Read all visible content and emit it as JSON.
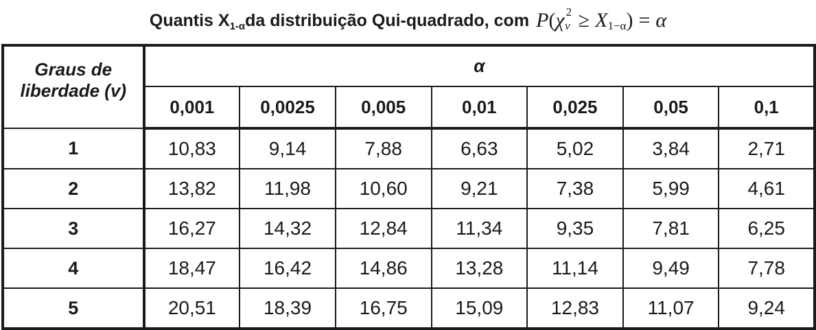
{
  "title": {
    "prefix": "Quantis X",
    "subscript": "1-α",
    "suffix": " da distribuição Qui-quadrado, com",
    "formula": {
      "p": "P",
      "open": "(",
      "chi": "χ",
      "chi_sup": "2",
      "chi_sub": "v",
      "geq": "≥",
      "x": "X",
      "x_sub": "1−α",
      "close": ")",
      "eq": "=",
      "alpha": "α"
    }
  },
  "table": {
    "row_header": "Graus de liberdade (v)",
    "alpha_label": "α",
    "alpha_values": [
      "0,001",
      "0,0025",
      "0,005",
      "0,01",
      "0,025",
      "0,05",
      "0,1"
    ],
    "rows": [
      {
        "df": "1",
        "values": [
          "10,83",
          "9,14",
          "7,88",
          "6,63",
          "5,02",
          "3,84",
          "2,71"
        ]
      },
      {
        "df": "2",
        "values": [
          "13,82",
          "11,98",
          "10,60",
          "9,21",
          "7,38",
          "5,99",
          "4,61"
        ]
      },
      {
        "df": "3",
        "values": [
          "16,27",
          "14,32",
          "12,84",
          "11,34",
          "9,35",
          "7,81",
          "6,25"
        ]
      },
      {
        "df": "4",
        "values": [
          "18,47",
          "16,42",
          "14,86",
          "13,28",
          "11,14",
          "9,49",
          "7,78"
        ]
      },
      {
        "df": "5",
        "values": [
          "20,51",
          "18,39",
          "16,75",
          "15,09",
          "12,83",
          "11,07",
          "9,24"
        ]
      }
    ]
  }
}
